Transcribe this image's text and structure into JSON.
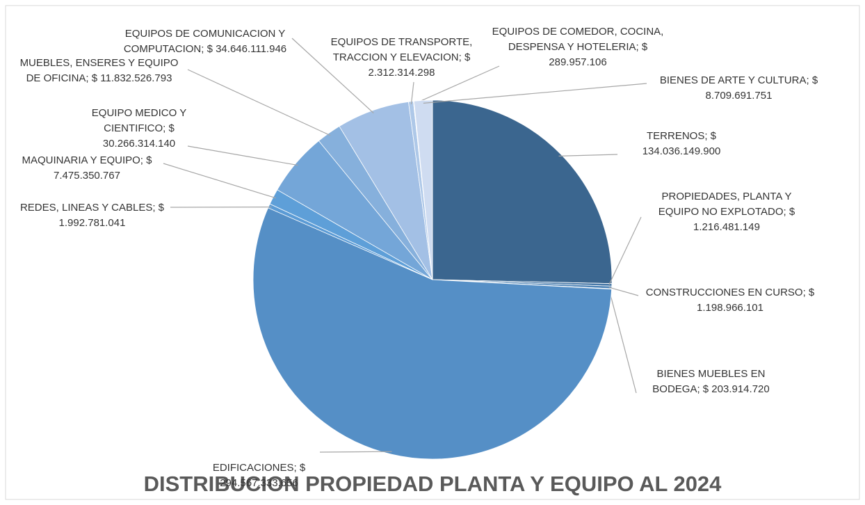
{
  "chart_data": {
    "type": "pie",
    "title": "DISTRIBUCION PROPIEDAD PLANTA Y EQUIPO  AL 2024",
    "categories": [
      "TERRENOS;",
      "PROPIEDADES, PLANTA Y EQUIPO NO EXPLOTADO;",
      "CONSTRUCCIONES EN CURSO;",
      "BIENES MUEBLES EN BODEGA;",
      "EDIFICACIONES;",
      "REDES, LINEAS Y CABLES;",
      "MAQUINARIA Y EQUIPO;",
      "EQUIPO MEDICO Y CIENTIFICO;",
      "MUEBLES, ENSERES Y EQUIPO DE OFICINA;",
      "EQUIPOS DE COMUNICACION Y COMPUTACION;",
      "EQUIPOS DE TRANSPORTE, TRACCION Y ELEVACION;",
      "EQUIPOS DE COMEDOR, COCINA, DESPENSA Y HOTELERIA;",
      "BIENES DE ARTE Y CULTURA;"
    ],
    "values": [
      134036149900,
      1216481149,
      1198966101,
      203914720,
      294567333656,
      1992781041,
      7475350767,
      30266314140,
      11832526793,
      34646111946,
      2312314298,
      289957106,
      8709691751
    ],
    "value_labels": [
      "$ 134.036.149.900",
      "$ 1.216.481.149",
      "$ 1.198.966.101",
      "$ 203.914.720",
      "$ 294.567.333.656",
      "$ 1.992.781.041",
      "$ 7.475.350.767",
      "$ 30.266.314.140",
      "$ 11.832.526.793",
      "$ 34.646.111.946",
      "$ 2.312.314.298",
      "$ 289.957.106",
      "$ 8.709.691.751"
    ],
    "colors": [
      "#3b668f",
      "#4a7aa8",
      "#4d83b6",
      "#5088bd",
      "#558fc6",
      "#5b9bd5",
      "#5e9fd8",
      "#74a6d8",
      "#86b0dc",
      "#a3c0e5",
      "#aec8e8",
      "#bcd0ec",
      "#cfdcf1"
    ]
  }
}
